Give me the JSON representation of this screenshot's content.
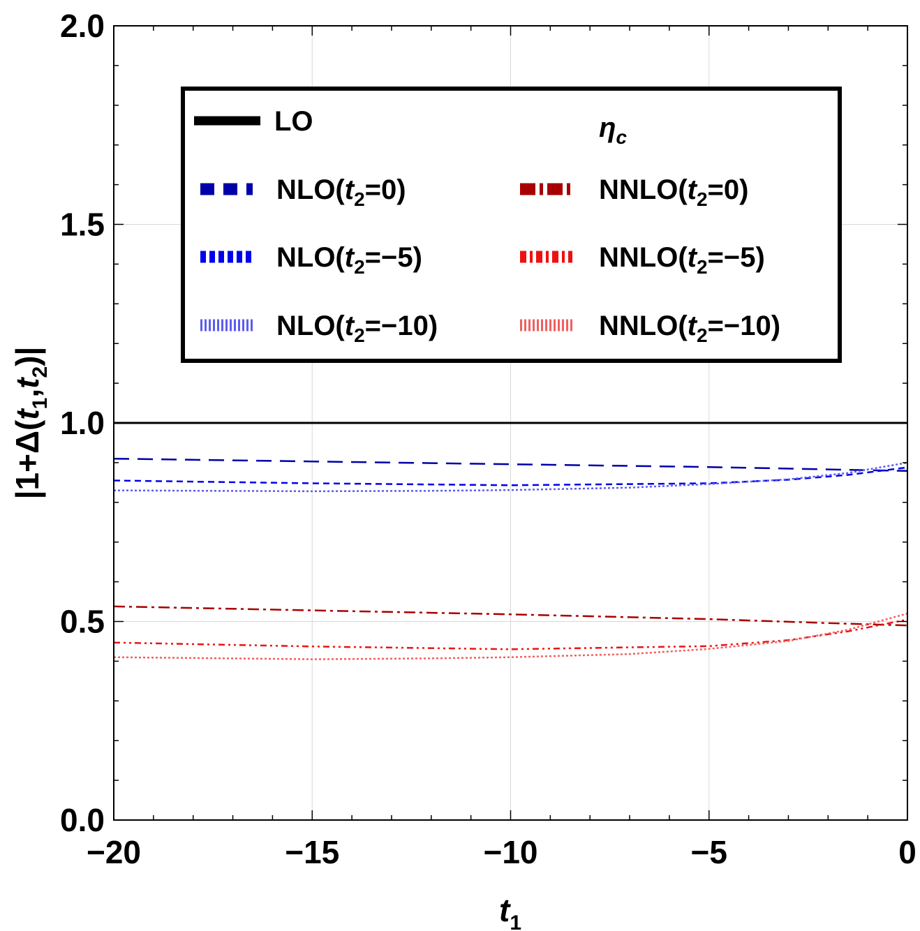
{
  "chart_data": {
    "type": "line",
    "title": "",
    "xlabel": {
      "base": "t",
      "sub": "1"
    },
    "ylabel": "|1+Δ(t1,t2)|",
    "xlim": [
      -20,
      0
    ],
    "ylim": [
      0,
      2.0
    ],
    "x_ticks": [
      -20,
      -15,
      -10,
      -5,
      0
    ],
    "x_tick_labels": [
      "−20",
      "−15",
      "−10",
      "−5",
      "0"
    ],
    "y_ticks": [
      0.0,
      0.5,
      1.0,
      1.5,
      2.0
    ],
    "y_tick_labels": [
      "0.0",
      "0.5",
      "1.0",
      "1.5",
      "2.0"
    ],
    "grid": true,
    "legend_position": "top-center",
    "annotation": {
      "base": "η",
      "sub": "c"
    },
    "series": [
      {
        "id": "lo",
        "name": "LO",
        "legend": {
          "pre": "LO",
          "sub": "",
          "post": ""
        },
        "color": "#000000",
        "style": "solid",
        "x": [
          -20,
          0
        ],
        "y": [
          1.0,
          1.0
        ]
      },
      {
        "id": "nlo0",
        "name": "NLO(t2=0)",
        "legend": {
          "pre": "NLO(",
          "sub": "2",
          "post": "=0)"
        },
        "color": "#0000a8",
        "style": "longdash",
        "x": [
          -20,
          -15,
          -10,
          -5,
          -2,
          0
        ],
        "y": [
          0.91,
          0.903,
          0.896,
          0.889,
          0.883,
          0.879
        ]
      },
      {
        "id": "nlo5",
        "name": "NLO(t2=−5)",
        "legend": {
          "pre": "NLO(",
          "sub": "2",
          "post": "=−5)"
        },
        "color": "#0000ee",
        "style": "shortdash",
        "x": [
          -20,
          -15,
          -10,
          -5,
          -3,
          -1.5,
          0
        ],
        "y": [
          0.855,
          0.848,
          0.843,
          0.848,
          0.857,
          0.869,
          0.888
        ]
      },
      {
        "id": "nlo10",
        "name": "NLO(t2=−10)",
        "legend": {
          "pre": "NLO(",
          "sub": "2",
          "post": "=−10)"
        },
        "color": "#5c5cf0",
        "style": "dotted",
        "x": [
          -20,
          -15,
          -12,
          -10,
          -7,
          -5,
          -3,
          -1.5,
          0
        ],
        "y": [
          0.83,
          0.828,
          0.829,
          0.831,
          0.837,
          0.846,
          0.858,
          0.874,
          0.9
        ]
      },
      {
        "id": "nnlo0",
        "name": "NNLO(t2=0)",
        "legend": {
          "pre": "NNLO(",
          "sub": "2",
          "post": "=0)"
        },
        "color": "#a80000",
        "style": "dashdot",
        "x": [
          -20,
          -15,
          -10,
          -5,
          -2,
          0
        ],
        "y": [
          0.538,
          0.528,
          0.518,
          0.506,
          0.496,
          0.49
        ]
      },
      {
        "id": "nnlo5",
        "name": "NNLO(t2=−5)",
        "legend": {
          "pre": "NNLO(",
          "sub": "2",
          "post": "=−5)"
        },
        "color": "#ee1111",
        "style": "dashdotdot",
        "x": [
          -20,
          -15,
          -10,
          -5,
          -3,
          -1.5,
          0
        ],
        "y": [
          0.447,
          0.437,
          0.43,
          0.438,
          0.453,
          0.475,
          0.505
        ]
      },
      {
        "id": "nnlo10",
        "name": "NNLO(t2=−10)",
        "legend": {
          "pre": "NNLO(",
          "sub": "2",
          "post": "=−10)"
        },
        "color": "#f06060",
        "style": "dotted",
        "x": [
          -20,
          -15,
          -12,
          -10,
          -7,
          -5,
          -3,
          -1.5,
          0
        ],
        "y": [
          0.41,
          0.405,
          0.407,
          0.41,
          0.418,
          0.431,
          0.451,
          0.479,
          0.52
        ]
      }
    ]
  }
}
